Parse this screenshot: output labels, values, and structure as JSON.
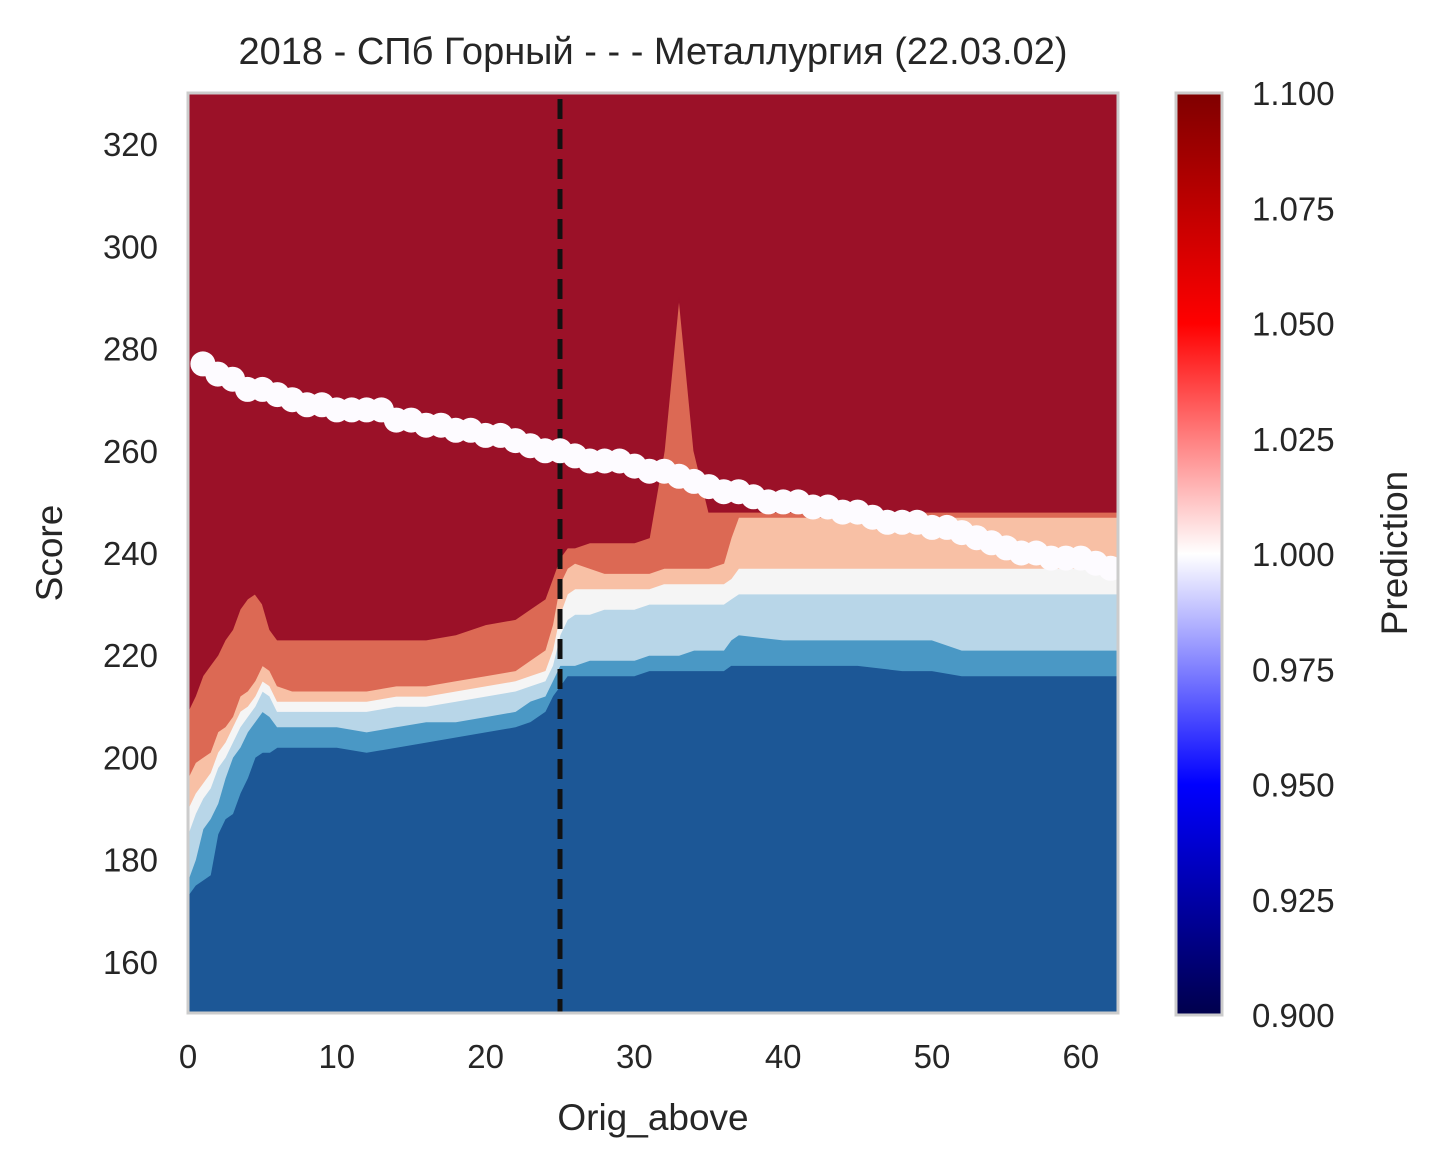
{
  "chart_data": {
    "type": "heatmap",
    "title": "2018 - СПб Горный - - - Металлургия (22.03.02)",
    "xlabel": "Orig_above",
    "ylabel": "Score",
    "xlim": [
      0,
      62.5
    ],
    "ylim": [
      150,
      330
    ],
    "x_ticks": [
      0,
      10,
      20,
      30,
      40,
      50,
      60
    ],
    "y_ticks": [
      160,
      180,
      200,
      220,
      240,
      260,
      280,
      300,
      320
    ],
    "grid": false,
    "colorbar": {
      "label": "Prediction",
      "range": [
        0.9,
        1.1
      ],
      "ticks": [
        "0.900",
        "0.925",
        "0.950",
        "0.975",
        "1.000",
        "1.025",
        "1.050",
        "1.075",
        "1.100"
      ],
      "colormap": "seismic"
    },
    "contour_levels": [
      {
        "level": "<0.975",
        "color": "#1c5796"
      },
      {
        "level": "0.975-0.99",
        "color": "#4a98c5"
      },
      {
        "level": "0.99-1.00",
        "color": "#b8d6e8"
      },
      {
        "level": "1.00-1.01",
        "color": "#f5f5f5"
      },
      {
        "level": "1.01-1.025",
        "color": "#f8c0a5"
      },
      {
        "level": "1.025-1.05",
        "color": "#dc6954"
      },
      {
        "level": ">1.05",
        "color": "#9b1128"
      }
    ],
    "reference_line": {
      "x": 25,
      "style": "dashed",
      "color": "#111111"
    },
    "boundaries": {
      "x": [
        0,
        0.5,
        1,
        1.5,
        2,
        2.5,
        3,
        3.5,
        4,
        4.5,
        5,
        5.5,
        6,
        7,
        8,
        10,
        12,
        14,
        16,
        18,
        20,
        22,
        23,
        24,
        24.5,
        25,
        25.5,
        26,
        27,
        28,
        30,
        31,
        32,
        33,
        34,
        35,
        36,
        36.5,
        37,
        40,
        45,
        48,
        50,
        52,
        55,
        60,
        62.5
      ],
      "b1": [
        173,
        175,
        176,
        177,
        185,
        188,
        189,
        193,
        196,
        200,
        201,
        201,
        202,
        202,
        202,
        202,
        201,
        202,
        203,
        204,
        205,
        206,
        207,
        209,
        212,
        214,
        216,
        216,
        216,
        216,
        216,
        217,
        217,
        217,
        217,
        217,
        217,
        218,
        218,
        218,
        218,
        217,
        217,
        216,
        216,
        216,
        216
      ],
      "b2": [
        176,
        180,
        186,
        188,
        191,
        196,
        200,
        202,
        205,
        207,
        209,
        208,
        206,
        206,
        206,
        206,
        205,
        206,
        207,
        207,
        208,
        209,
        211,
        212,
        215,
        218,
        218,
        218,
        219,
        219,
        219,
        220,
        220,
        220,
        221,
        221,
        221,
        223,
        224,
        223,
        223,
        223,
        223,
        221,
        221,
        221,
        221
      ],
      "b3": [
        185,
        189,
        192,
        194,
        198,
        200,
        203,
        206,
        208,
        210,
        213,
        212,
        209,
        209,
        209,
        209,
        209,
        210,
        210,
        211,
        212,
        213,
        214,
        215,
        218,
        224,
        227,
        228,
        228,
        229,
        229,
        230,
        230,
        230,
        230,
        230,
        230,
        231,
        232,
        232,
        232,
        232,
        232,
        232,
        232,
        232,
        232
      ],
      "b4": [
        190,
        193,
        195,
        197,
        201,
        203,
        206,
        209,
        210,
        212,
        215,
        214,
        211,
        211,
        211,
        211,
        211,
        212,
        212,
        213,
        214,
        215,
        216,
        217,
        221,
        228,
        232,
        233,
        233,
        233,
        233,
        233,
        234,
        234,
        234,
        234,
        234,
        235,
        237,
        237,
        237,
        237,
        237,
        237,
        237,
        237,
        237
      ],
      "b5": [
        196,
        199,
        200,
        201,
        205,
        206,
        208,
        212,
        213,
        215,
        218,
        217,
        214,
        213,
        213,
        213,
        213,
        214,
        214,
        215,
        216,
        217,
        219,
        221,
        226,
        234,
        237,
        238,
        237,
        236,
        236,
        236,
        237,
        237,
        237,
        237,
        238,
        243,
        247,
        247,
        247,
        247,
        247,
        247,
        247,
        247,
        247
      ],
      "b6": [
        209,
        212,
        216,
        218,
        220,
        223,
        225,
        229,
        231,
        232,
        230,
        225,
        223,
        223,
        223,
        223,
        223,
        223,
        223,
        224,
        226,
        227,
        229,
        231,
        235,
        239,
        241,
        241,
        242,
        242,
        242,
        243,
        260,
        290,
        260,
        248,
        248,
        248,
        248,
        248,
        248,
        248,
        248,
        248,
        248,
        248,
        248
      ]
    },
    "scatter_points": {
      "x": [
        1,
        2,
        3,
        4,
        5,
        6,
        7,
        8,
        9,
        10,
        11,
        12,
        13,
        14,
        15,
        16,
        17,
        18,
        19,
        20,
        21,
        22,
        23,
        24,
        25,
        26,
        27,
        28,
        29,
        30,
        31,
        32,
        33,
        34,
        35,
        36,
        37,
        38,
        39,
        40,
        41,
        42,
        43,
        44,
        45,
        46,
        47,
        48,
        49,
        50,
        51,
        52,
        53,
        54,
        55,
        56,
        57,
        58,
        59,
        60,
        61,
        62
      ],
      "y": [
        277,
        275,
        274,
        272,
        272,
        271,
        270,
        269,
        269,
        268,
        268,
        268,
        268,
        266,
        266,
        265,
        265,
        264,
        264,
        263,
        263,
        262,
        261,
        260,
        260,
        259,
        258,
        258,
        258,
        257,
        256,
        256,
        255,
        254,
        253,
        252,
        252,
        251,
        250,
        250,
        250,
        249,
        249,
        248,
        248,
        247,
        246,
        246,
        246,
        245,
        245,
        244,
        243,
        242,
        241,
        240,
        240,
        239,
        239,
        239,
        238,
        237
      ],
      "color": "#fdfbff"
    }
  }
}
